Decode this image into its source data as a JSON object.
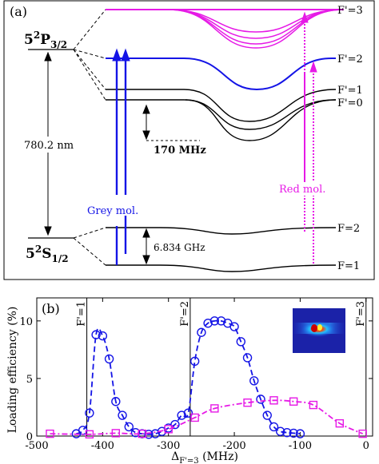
{
  "panel_a": {
    "label": "(a)",
    "excited_state": "5²P₃/₂",
    "excited_state_parts": {
      "main": "5",
      "sup": "2",
      "letter": "P",
      "sub": "3/2"
    },
    "ground_state_parts": {
      "main": "5",
      "sup": "2",
      "letter": "S",
      "sub": "1/2"
    },
    "wavelength": "780.2 nm",
    "excited_levels": [
      "F'=3",
      "F'=2",
      "F'=1",
      "F'=0"
    ],
    "ground_levels": [
      "F=2",
      "F=1"
    ],
    "hf_splitting_excited": "170 MHz",
    "hf_splitting_ground": "6.834 GHz",
    "grey_label": "Grey mol.",
    "red_label": "Red mol.",
    "colors": {
      "grey": "#1414e6",
      "red": "#e619e6",
      "levels": "#000000"
    }
  },
  "panel_b": {
    "label": "(b)",
    "ylabel": "Loading efficiency (%)",
    "xlabel_main": "Δ",
    "xlabel_sub": "F'=3",
    "xlabel_unit": " (MHz)",
    "vlines": [
      {
        "x": -424,
        "label": "F'=1"
      },
      {
        "x": -267,
        "label": "F'=2"
      },
      {
        "x": 0,
        "label": "F'=3"
      }
    ]
  },
  "chart_data": {
    "type": "line",
    "xlim": [
      -500,
      10
    ],
    "ylim": [
      0,
      12
    ],
    "xticks": [
      -500,
      -400,
      -300,
      -200,
      -100,
      0
    ],
    "yticks": [
      0,
      5,
      10
    ],
    "xticklabels": [
      "-500",
      "-400",
      "-300",
      "-200",
      "-100",
      "0"
    ],
    "yticklabels": [
      "0",
      "5",
      "10"
    ],
    "series": [
      {
        "name": "",
        "color": "#1414e6",
        "marker": "circle",
        "line": "dashed",
        "x": [
          -440,
          -430,
          -420,
          -410,
          -400,
          -390,
          -380,
          -370,
          -360,
          -350,
          -340,
          -330,
          -320,
          -310,
          -300,
          -290,
          -280,
          -270,
          -260,
          -250,
          -240,
          -230,
          -220,
          -210,
          -200,
          -190,
          -180,
          -170,
          -160,
          -150,
          -140,
          -130,
          -120,
          -110,
          -100
        ],
        "y": [
          0.2,
          0.5,
          2.0,
          8.8,
          8.7,
          6.7,
          3.0,
          1.8,
          0.8,
          0.3,
          0.2,
          0.15,
          0.2,
          0.4,
          0.7,
          1.0,
          1.8,
          2.0,
          6.5,
          9.0,
          9.8,
          10.0,
          10.0,
          9.8,
          9.5,
          8.2,
          6.8,
          4.8,
          3.2,
          1.8,
          0.8,
          0.4,
          0.3,
          0.25,
          0.2
        ]
      },
      {
        "name": "",
        "color": "#e619e6",
        "marker": "square",
        "line": "dash-dot",
        "x": [
          -480,
          -420,
          -380,
          -340,
          -300,
          -260,
          -230,
          -180,
          -140,
          -110,
          -80,
          -40,
          -5
        ],
        "y": [
          0.2,
          0.15,
          0.25,
          0.2,
          0.6,
          1.6,
          2.4,
          2.9,
          3.1,
          3.0,
          2.7,
          1.1,
          0.2
        ]
      }
    ]
  }
}
